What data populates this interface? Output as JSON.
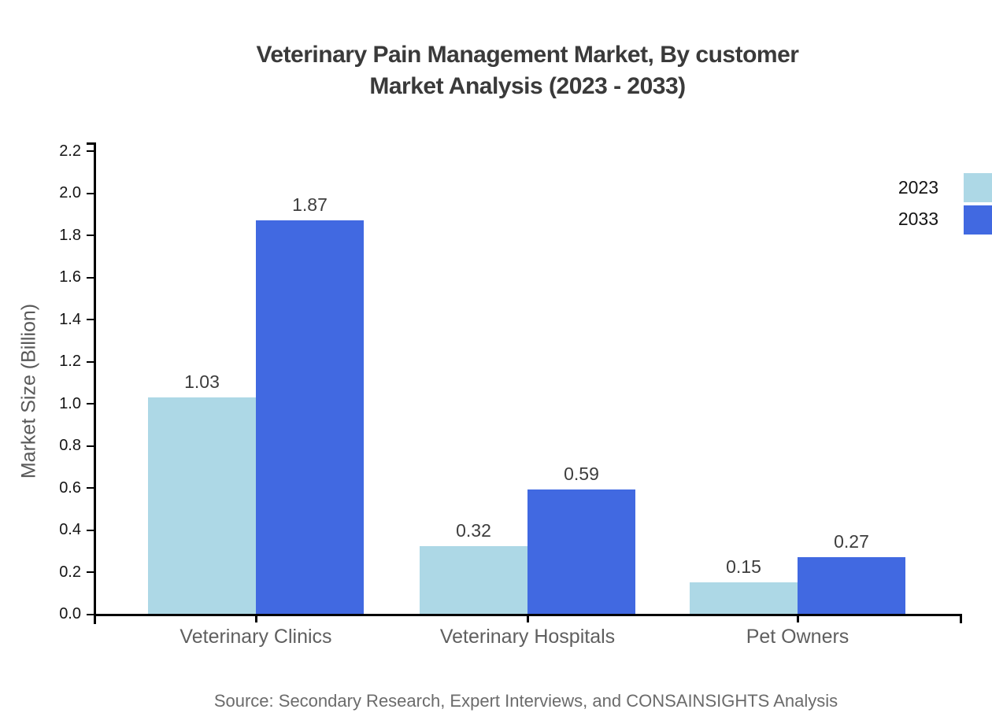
{
  "title": {
    "line1": "Veterinary Pain Management Market, By customer",
    "line2": "Market Analysis (2023 - 2033)"
  },
  "y_axis": {
    "label": "Market Size (Billion)",
    "tick_values": [
      0.0,
      0.2,
      0.4,
      0.6,
      0.8,
      1.0,
      1.2,
      1.4,
      1.6,
      1.8,
      2.0,
      2.2
    ]
  },
  "legend": [
    {
      "label": "2023",
      "color": "#ADD8E6"
    },
    {
      "label": "2033",
      "color": "#4169E1"
    }
  ],
  "source": "Source: Secondary Research, Expert Interviews, and CONSAINSIGHTS Analysis",
  "chart_data": {
    "type": "bar",
    "title": "Veterinary Pain Management Market, By customer Market Analysis (2023 - 2033)",
    "categories": [
      "Veterinary Clinics",
      "Veterinary Hospitals",
      "Pet Owners"
    ],
    "series": [
      {
        "name": "2023",
        "color": "#ADD8E6",
        "values": [
          1.03,
          0.32,
          0.15
        ]
      },
      {
        "name": "2033",
        "color": "#4169E1",
        "values": [
          1.87,
          0.59,
          0.27
        ]
      }
    ],
    "xlabel": "",
    "ylabel": "Market Size (Billion)",
    "ylim": [
      0,
      2.2
    ],
    "grid": false,
    "value_labels": true,
    "legend_position": "right-outside-top"
  }
}
